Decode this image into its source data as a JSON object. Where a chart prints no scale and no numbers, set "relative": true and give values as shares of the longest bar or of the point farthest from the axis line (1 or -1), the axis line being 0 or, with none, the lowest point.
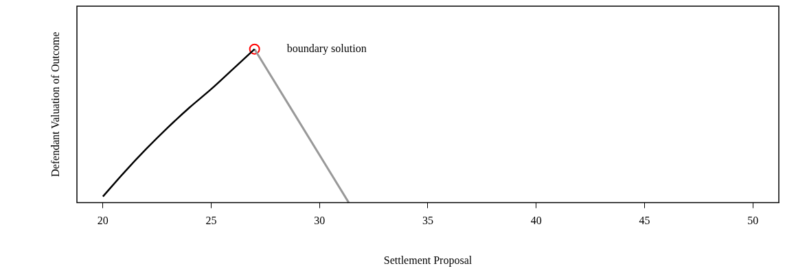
{
  "chart_data": {
    "type": "line",
    "xlabel": "Settlement Proposal",
    "ylabel": "Defendant Valuation of Outcome",
    "relative": true,
    "xlim": [
      18.8,
      51.2
    ],
    "xticks": [
      20,
      25,
      30,
      35,
      40,
      45,
      50
    ],
    "grid": false,
    "legend": false,
    "series": [
      {
        "color": "#000000",
        "marker": "none",
        "x": [
          20,
          21,
          22,
          23,
          24,
          25,
          26,
          27
        ],
        "values": [
          0.04,
          0.2,
          0.35,
          0.49,
          0.62,
          0.74,
          0.87,
          1.0
        ]
      },
      {
        "color": "#999999",
        "marker": "none",
        "x": [
          27,
          31.35
        ],
        "values": [
          1.0,
          0
        ]
      },
      {
        "type": "scatter",
        "color": "#ff0000",
        "marker": "circle",
        "x": [
          27
        ],
        "values": [
          1.0
        ]
      }
    ],
    "annotations": [
      {
        "text": "boundary solution",
        "x": 27,
        "y": 1.0
      }
    ]
  }
}
